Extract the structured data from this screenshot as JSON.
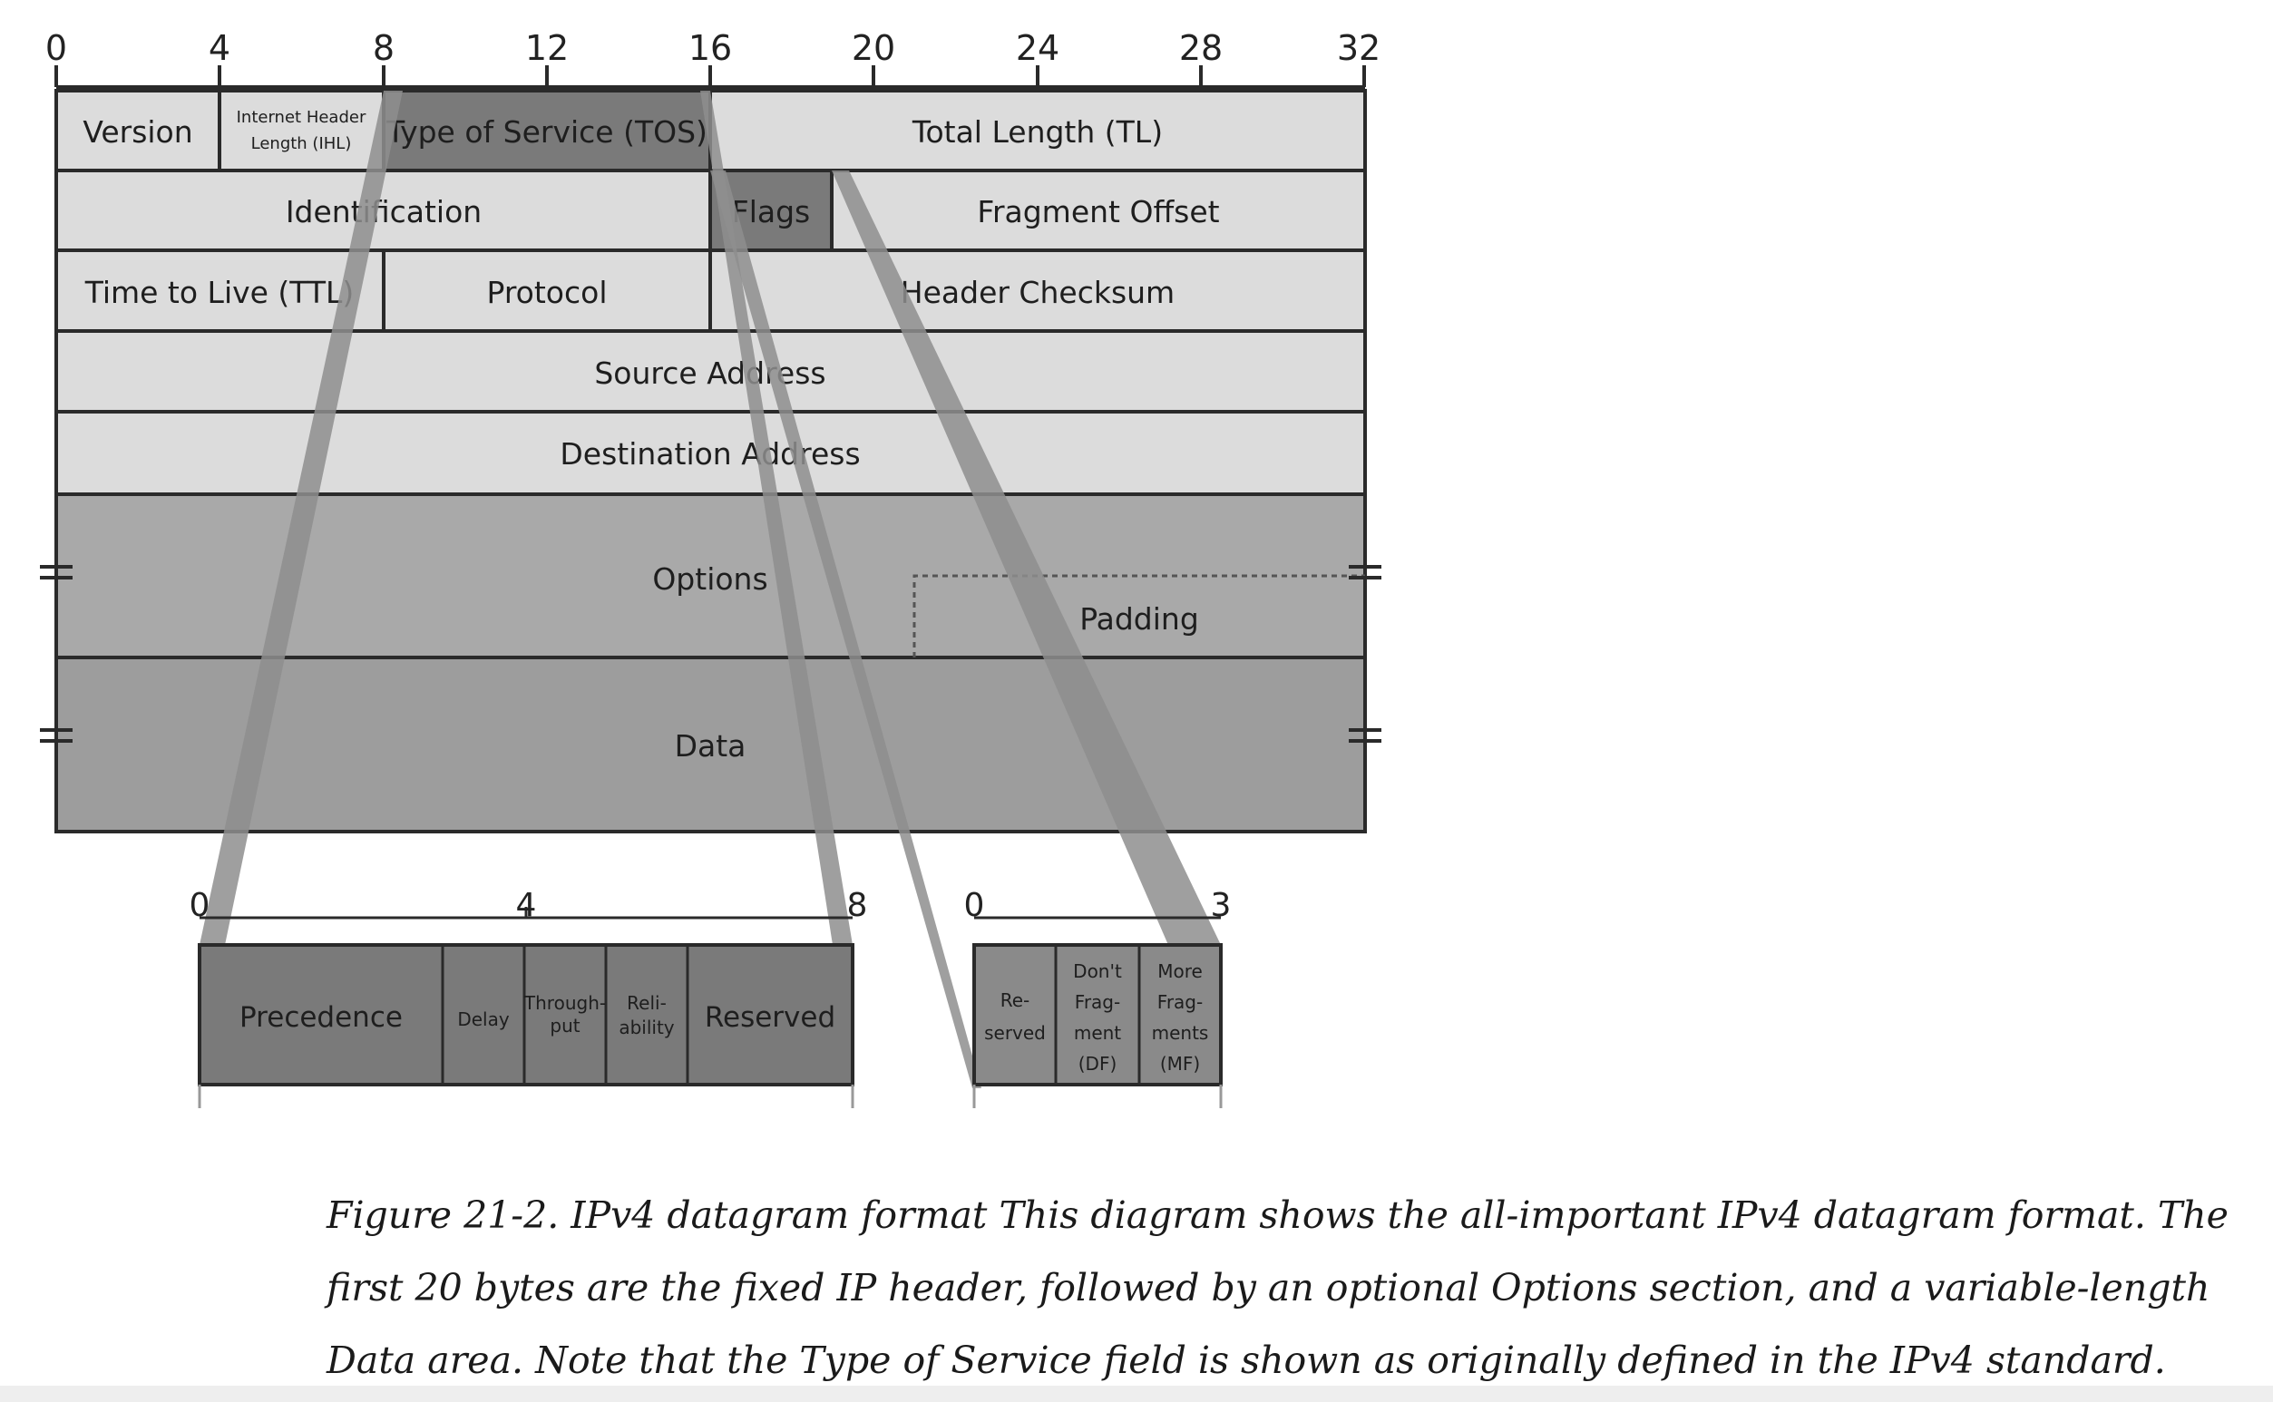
{
  "bit_ticks": [
    "0",
    "4",
    "8",
    "12",
    "16",
    "20",
    "24",
    "28",
    "32"
  ],
  "fields": {
    "version": "Version",
    "ihl_line1": "Internet Header",
    "ihl_line2": "Length (IHL)",
    "tos": "Type of Service (TOS)",
    "total_length": "Total Length (TL)",
    "identification": "Identification",
    "flags": "Flags",
    "fragment_offset": "Fragment Offset",
    "ttl": "Time to Live (TTL)",
    "protocol": "Protocol",
    "header_checksum": "Header Checksum",
    "source_address": "Source Address",
    "destination_address": "Destination Address",
    "options": "Options",
    "padding": "Padding",
    "data": "Data"
  },
  "tos_detail": {
    "ticks": [
      "0",
      "4",
      "8"
    ],
    "precedence": "Precedence",
    "delay": "Delay",
    "throughput_line1": "Through-",
    "throughput_line2": "put",
    "reliability_line1": "Reli-",
    "reliability_line2": "ability",
    "reserved": "Reserved"
  },
  "flags_detail": {
    "ticks": [
      "0",
      "3"
    ],
    "reserved_line1": "Re-",
    "reserved_line2": "served",
    "df_line1": "Don't",
    "df_line2": "Frag-",
    "df_line3": "ment",
    "df_line4": "(DF)",
    "mf_line1": "More",
    "mf_line2": "Frag-",
    "mf_line3": "ments",
    "mf_line4": "(MF)"
  },
  "caption": {
    "line1": "Figure 21-2. IPv4 datagram format This diagram shows the all-important IPv4 datagram format. The",
    "line2": "first 20 bytes are the fixed IP header, followed by an optional Options section, and a variable-length",
    "line3": "Data area. Note that the Type of Service field is shown as originally defined in the IPv4 standard."
  },
  "colors": {
    "light_cell": "#dcdcdc",
    "mid_cell": "#a9a9a9",
    "dark_cell": "#7a7a7a",
    "wedge": "#8e8e8e",
    "line": "#2a2a2a"
  }
}
